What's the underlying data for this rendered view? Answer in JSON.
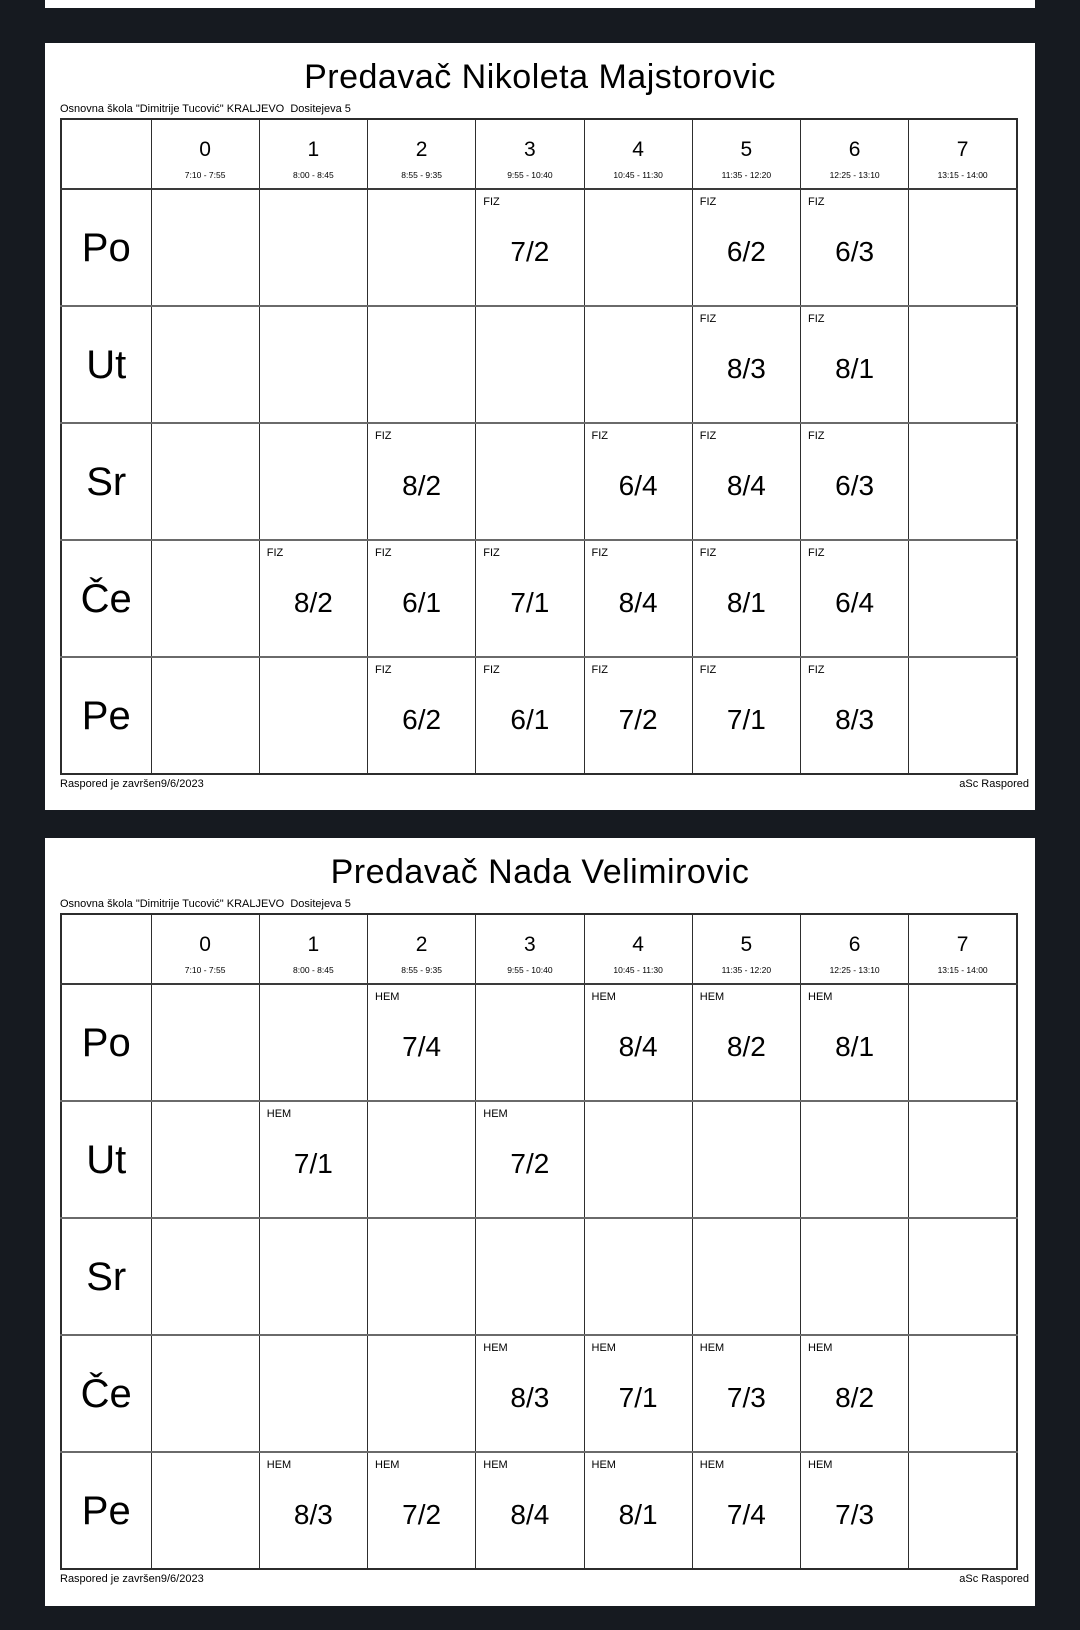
{
  "viewer": {
    "background_color": "#161a20",
    "page_color": "#ffffff",
    "text_color": "#000000"
  },
  "pages": [
    {
      "title": "Predavač Nikoleta Majstorovic",
      "school": "Osnovna škola \"Dimitrije Tucović\" KRALJEVO  Dositejeva 5",
      "footer_left": "Raspored je završen9/6/2023",
      "footer_right": "aSc Raspored",
      "periods": [
        {
          "num": "0",
          "time": "7:10 - 7:55"
        },
        {
          "num": "1",
          "time": "8:00 - 8:45"
        },
        {
          "num": "2",
          "time": "8:55 - 9:35"
        },
        {
          "num": "3",
          "time": "9:55 - 10:40"
        },
        {
          "num": "4",
          "time": "10:45 - 11:30"
        },
        {
          "num": "5",
          "time": "11:35 - 12:20"
        },
        {
          "num": "6",
          "time": "12:25 - 13:10"
        },
        {
          "num": "7",
          "time": "13:15 - 14:00"
        }
      ],
      "days": [
        {
          "label": "Po",
          "cells": [
            null,
            null,
            null,
            {
              "subject": "FIZ",
              "group": "7/2"
            },
            null,
            {
              "subject": "FIZ",
              "group": "6/2"
            },
            {
              "subject": "FIZ",
              "group": "6/3"
            },
            null
          ]
        },
        {
          "label": "Ut",
          "cells": [
            null,
            null,
            null,
            null,
            null,
            {
              "subject": "FIZ",
              "group": "8/3"
            },
            {
              "subject": "FIZ",
              "group": "8/1"
            },
            null
          ]
        },
        {
          "label": "Sr",
          "cells": [
            null,
            null,
            {
              "subject": "FIZ",
              "group": "8/2"
            },
            null,
            {
              "subject": "FIZ",
              "group": "6/4"
            },
            {
              "subject": "FIZ",
              "group": "8/4"
            },
            {
              "subject": "FIZ",
              "group": "6/3"
            },
            null
          ]
        },
        {
          "label": "Če",
          "cells": [
            null,
            {
              "subject": "FIZ",
              "group": "8/2"
            },
            {
              "subject": "FIZ",
              "group": "6/1"
            },
            {
              "subject": "FIZ",
              "group": "7/1"
            },
            {
              "subject": "FIZ",
              "group": "8/4"
            },
            {
              "subject": "FIZ",
              "group": "8/1"
            },
            {
              "subject": "FIZ",
              "group": "6/4"
            },
            null
          ]
        },
        {
          "label": "Pe",
          "cells": [
            null,
            null,
            {
              "subject": "FIZ",
              "group": "6/2"
            },
            {
              "subject": "FIZ",
              "group": "6/1"
            },
            {
              "subject": "FIZ",
              "group": "7/2"
            },
            {
              "subject": "FIZ",
              "group": "7/1"
            },
            {
              "subject": "FIZ",
              "group": "8/3"
            },
            null
          ]
        }
      ]
    },
    {
      "title": "Predavač Nada Velimirovic",
      "school": "Osnovna škola \"Dimitrije Tucović\" KRALJEVO  Dositejeva 5",
      "footer_left": "Raspored je završen9/6/2023",
      "footer_right": "aSc Raspored",
      "periods": [
        {
          "num": "0",
          "time": "7:10 - 7:55"
        },
        {
          "num": "1",
          "time": "8:00 - 8:45"
        },
        {
          "num": "2",
          "time": "8:55 - 9:35"
        },
        {
          "num": "3",
          "time": "9:55 - 10:40"
        },
        {
          "num": "4",
          "time": "10:45 - 11:30"
        },
        {
          "num": "5",
          "time": "11:35 - 12:20"
        },
        {
          "num": "6",
          "time": "12:25 - 13:10"
        },
        {
          "num": "7",
          "time": "13:15 - 14:00"
        }
      ],
      "days": [
        {
          "label": "Po",
          "cells": [
            null,
            null,
            {
              "subject": "HEM",
              "group": "7/4"
            },
            null,
            {
              "subject": "HEM",
              "group": "8/4"
            },
            {
              "subject": "HEM",
              "group": "8/2"
            },
            {
              "subject": "HEM",
              "group": "8/1"
            },
            null
          ]
        },
        {
          "label": "Ut",
          "cells": [
            null,
            {
              "subject": "HEM",
              "group": "7/1"
            },
            null,
            {
              "subject": "HEM",
              "group": "7/2"
            },
            null,
            null,
            null,
            null
          ]
        },
        {
          "label": "Sr",
          "cells": [
            null,
            null,
            null,
            null,
            null,
            null,
            null,
            null
          ]
        },
        {
          "label": "Če",
          "cells": [
            null,
            null,
            null,
            {
              "subject": "HEM",
              "group": "8/3"
            },
            {
              "subject": "HEM",
              "group": "7/1"
            },
            {
              "subject": "HEM",
              "group": "7/3"
            },
            {
              "subject": "HEM",
              "group": "8/2"
            },
            null
          ]
        },
        {
          "label": "Pe",
          "cells": [
            null,
            {
              "subject": "HEM",
              "group": "8/3"
            },
            {
              "subject": "HEM",
              "group": "7/2"
            },
            {
              "subject": "HEM",
              "group": "8/4"
            },
            {
              "subject": "HEM",
              "group": "8/1"
            },
            {
              "subject": "HEM",
              "group": "7/4"
            },
            {
              "subject": "HEM",
              "group": "7/3"
            },
            null
          ]
        }
      ]
    }
  ]
}
